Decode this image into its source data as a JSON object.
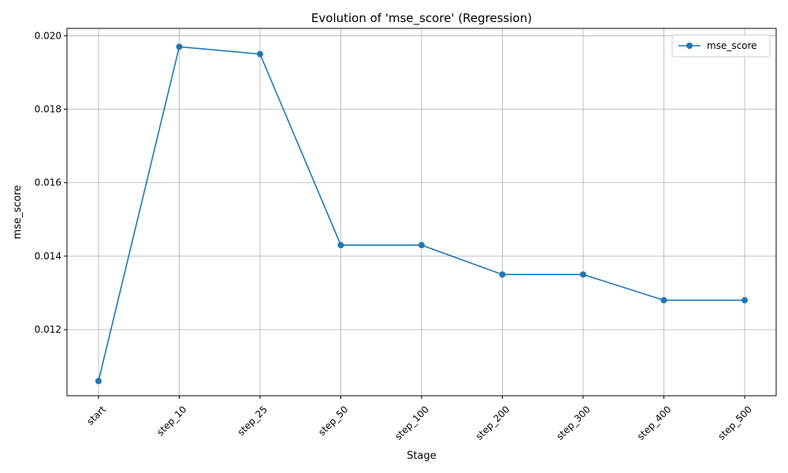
{
  "chart_data": {
    "type": "line",
    "title": "Evolution of 'mse_score' (Regression)",
    "xlabel": "Stage",
    "ylabel": "mse_score",
    "categories": [
      "start",
      "step_10",
      "step_25",
      "step_50",
      "step_100",
      "step_200",
      "step_300",
      "step_400",
      "step_500"
    ],
    "series": [
      {
        "name": "mse_score",
        "color": "#1f77b4",
        "marker": "circle",
        "values": [
          0.0106,
          0.0197,
          0.0195,
          0.0143,
          0.0143,
          0.0135,
          0.0135,
          0.0128,
          0.0128
        ]
      }
    ],
    "ylim": [
      0.0102,
      0.0202
    ],
    "yticks": [
      "0.012",
      "0.014",
      "0.016",
      "0.018",
      "0.020"
    ],
    "ytick_values": [
      0.012,
      0.014,
      0.016,
      0.018,
      0.02
    ],
    "grid": true,
    "legend_position": "top-right",
    "xtick_rotation": "45"
  }
}
